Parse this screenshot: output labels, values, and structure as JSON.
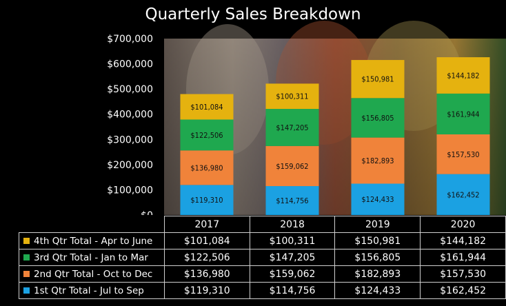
{
  "chart_data": {
    "type": "bar",
    "stacked": true,
    "title": "Quarterly Sales Breakdown",
    "categories": [
      "2017",
      "2018",
      "2019",
      "2020"
    ],
    "ylim": [
      0,
      700000
    ],
    "yticks": [
      "$0",
      "$100,000",
      "$200,000",
      "$300,000",
      "$400,000",
      "$500,000",
      "$600,000",
      "$700,000"
    ],
    "ytick_values": [
      0,
      100000,
      200000,
      300000,
      400000,
      500000,
      600000,
      700000
    ],
    "grid": false,
    "legend": "data-table below plot",
    "series": [
      {
        "name": "1st Qtr Total - Jul to Sep",
        "color": "#1BA1E2",
        "values": [
          119310,
          114756,
          124433,
          162452
        ],
        "labels": [
          "$119,310",
          "$114,756",
          "$124,433",
          "$162,452"
        ]
      },
      {
        "name": "2nd Qtr Total - Oct to Dec",
        "color": "#F0833A",
        "values": [
          136980,
          159062,
          182893,
          157530
        ],
        "labels": [
          "$136,980",
          "$159,062",
          "$182,893",
          "$157,530"
        ]
      },
      {
        "name": "3rd Qtr Total - Jan to Mar",
        "color": "#1FA84F",
        "values": [
          122506,
          147205,
          156805,
          161944
        ],
        "labels": [
          "$122,506",
          "$147,205",
          "$156,805",
          "$161,944"
        ]
      },
      {
        "name": "4th Qtr Total - Apr to June",
        "color": "#E5B20F",
        "values": [
          101084,
          100311,
          150981,
          144182
        ],
        "labels": [
          "$101,084",
          "$100,311",
          "$150,981",
          "$144,182"
        ]
      }
    ]
  }
}
